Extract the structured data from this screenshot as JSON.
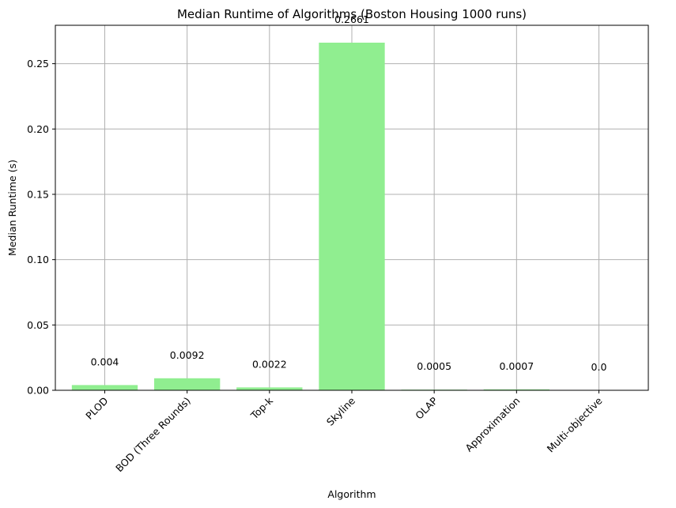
{
  "chart_data": {
    "type": "bar",
    "title": "Median Runtime of Algorithms (Boston Housing 1000 runs)",
    "xlabel": "Algorithm",
    "ylabel": "Median Runtime (s)",
    "categories": [
      "PLOD",
      "BOD (Three Rounds)",
      "Top-k",
      "Skyline",
      "OLAP",
      "Approximation",
      "Multi-objective"
    ],
    "values": [
      0.004,
      0.0092,
      0.0022,
      0.2661,
      0.0005,
      0.0007,
      0.0
    ],
    "value_labels": [
      "0.004",
      "0.0092",
      "0.0022",
      "0.2661",
      "0.0005",
      "0.0007",
      "0.0"
    ],
    "ylim": [
      0,
      0.2794
    ],
    "yticks": [
      0.0,
      0.05,
      0.1,
      0.15,
      0.2,
      0.25
    ],
    "ytick_labels": [
      "0.00",
      "0.05",
      "0.10",
      "0.15",
      "0.20",
      "0.25"
    ],
    "grid": true,
    "bar_color": "#90ee90",
    "grid_color": "#b0b0b0"
  }
}
